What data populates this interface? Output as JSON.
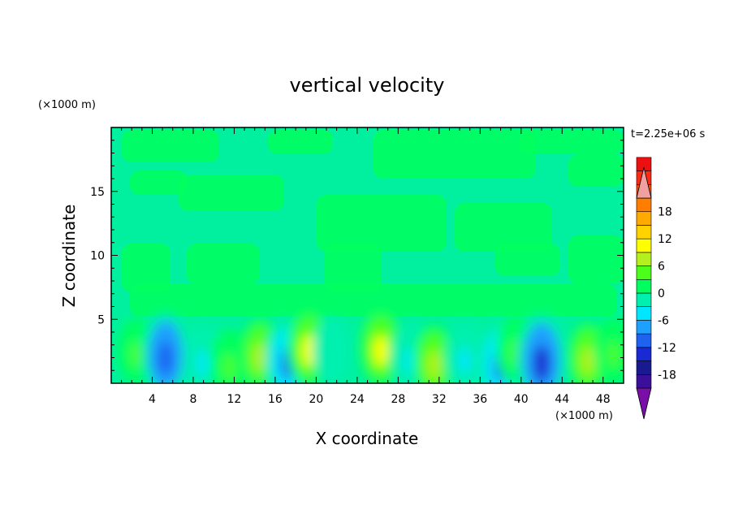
{
  "chart_data": {
    "type": "heatmap",
    "title": "vertical velocity",
    "xlabel": "X coordinate",
    "ylabel": "Z coordinate",
    "x_scale_label": "(×1000 m)",
    "y_scale_label": "(×1000 m)",
    "time_label": "t=2.25e+06 s",
    "xlim": [
      0,
      50
    ],
    "ylim": [
      0,
      20
    ],
    "x_ticks": [
      4,
      8,
      12,
      16,
      20,
      24,
      28,
      32,
      36,
      40,
      44,
      48
    ],
    "y_ticks": [
      5,
      10,
      15
    ],
    "grid": false,
    "colorbar": {
      "min": -21,
      "max": 21,
      "step": 3,
      "tick_values": [
        18,
        12,
        6,
        0,
        -6,
        -12,
        -18
      ],
      "colors": [
        "#7a0ea8",
        "#3a0f9a",
        "#1a1a90",
        "#1a2ad2",
        "#1e62f0",
        "#1ea0ff",
        "#00e6ff",
        "#00f0b0",
        "#00ff5e",
        "#4cff1a",
        "#b4f01e",
        "#ffff00",
        "#ffd200",
        "#ffaa00",
        "#ff7d00",
        "#ff4a00",
        "#ff2a14",
        "#ee1010",
        "#f0a0a0"
      ]
    },
    "features": [
      {
        "x": 2.5,
        "z": 2.5,
        "value": 3
      },
      {
        "x": 5.3,
        "z": 2.2,
        "value": -12
      },
      {
        "x": 9.0,
        "z": 1.8,
        "value": -4
      },
      {
        "x": 11.5,
        "z": 1.5,
        "value": 4
      },
      {
        "x": 14.5,
        "z": 2.3,
        "value": 6
      },
      {
        "x": 17.2,
        "z": 1.8,
        "value": -10
      },
      {
        "x": 19.3,
        "z": 2.8,
        "value": 9
      },
      {
        "x": 21.5,
        "z": 2.5,
        "value": -3
      },
      {
        "x": 26.3,
        "z": 2.8,
        "value": 9
      },
      {
        "x": 29.2,
        "z": 2.0,
        "value": -4
      },
      {
        "x": 31.5,
        "z": 1.7,
        "value": 7
      },
      {
        "x": 34.5,
        "z": 2.0,
        "value": -4
      },
      {
        "x": 38.0,
        "z": 1.6,
        "value": -10
      },
      {
        "x": 39.5,
        "z": 2.6,
        "value": 4
      },
      {
        "x": 42.0,
        "z": 1.8,
        "value": -15
      },
      {
        "x": 46.5,
        "z": 2.0,
        "value": 6
      },
      {
        "x": 49.0,
        "z": 2.5,
        "value": 4
      }
    ]
  }
}
